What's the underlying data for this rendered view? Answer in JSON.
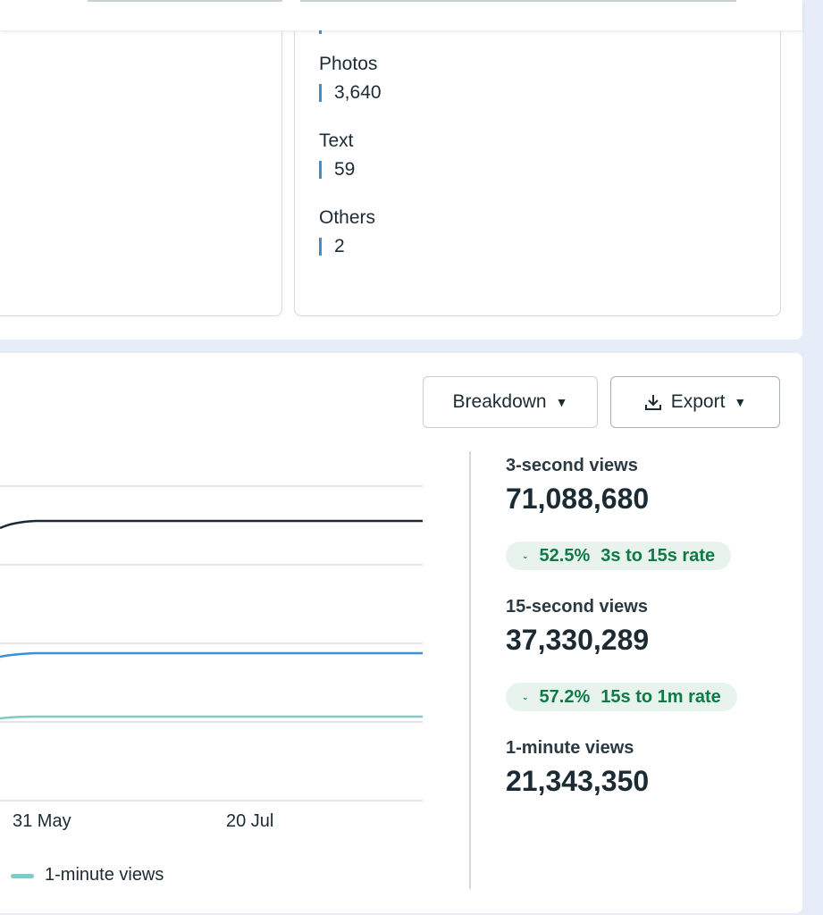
{
  "content_types": [
    {
      "label": "Photos",
      "value": "3,640"
    },
    {
      "label": "Text",
      "value": "59"
    },
    {
      "label": "Others",
      "value": "2"
    }
  ],
  "buttons": {
    "breakdown": "Breakdown",
    "export": "Export"
  },
  "chart": {
    "x_labels": [
      "31 May",
      "20 Jul"
    ],
    "legend": "1-minute views"
  },
  "metrics": [
    {
      "label": "3-second views",
      "value": "71,088,680",
      "badge_value": "52.5%",
      "badge_label": "3s to 15s rate"
    },
    {
      "label": "15-second views",
      "value": "37,330,289",
      "badge_value": "57.2%",
      "badge_label": "15s to 1m rate"
    },
    {
      "label": "1-minute views",
      "value": "21,343,350"
    }
  ]
}
